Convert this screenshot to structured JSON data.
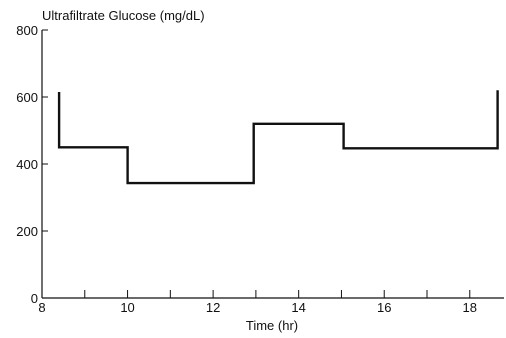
{
  "chart_data": {
    "type": "line",
    "title": "",
    "ylabel": "Ultrafiltrate Glucose (mg/dL)",
    "xlabel": "Time (hr)",
    "xlim": [
      8,
      18.8
    ],
    "ylim": [
      0,
      800
    ],
    "x_ticks": [
      8,
      10,
      12,
      14,
      16,
      18
    ],
    "x_tick_labels": [
      "8",
      "10",
      "12",
      "14",
      "16",
      "18"
    ],
    "x_minor_ticks": [
      9,
      11,
      13,
      15,
      17
    ],
    "y_ticks": [
      0,
      200,
      400,
      600,
      800
    ],
    "y_tick_labels": [
      "0",
      "200",
      "400",
      "600",
      "800"
    ],
    "grid": false,
    "legend": "none",
    "line_color": "#111111",
    "series": [
      {
        "x": [
          8.4,
          8.4,
          10.0,
          10.0,
          12.95,
          12.95,
          15.05,
          15.05,
          18.65,
          18.65
        ],
        "y": [
          615,
          450,
          450,
          343,
          343,
          520,
          520,
          447,
          447,
          620
        ]
      }
    ]
  }
}
